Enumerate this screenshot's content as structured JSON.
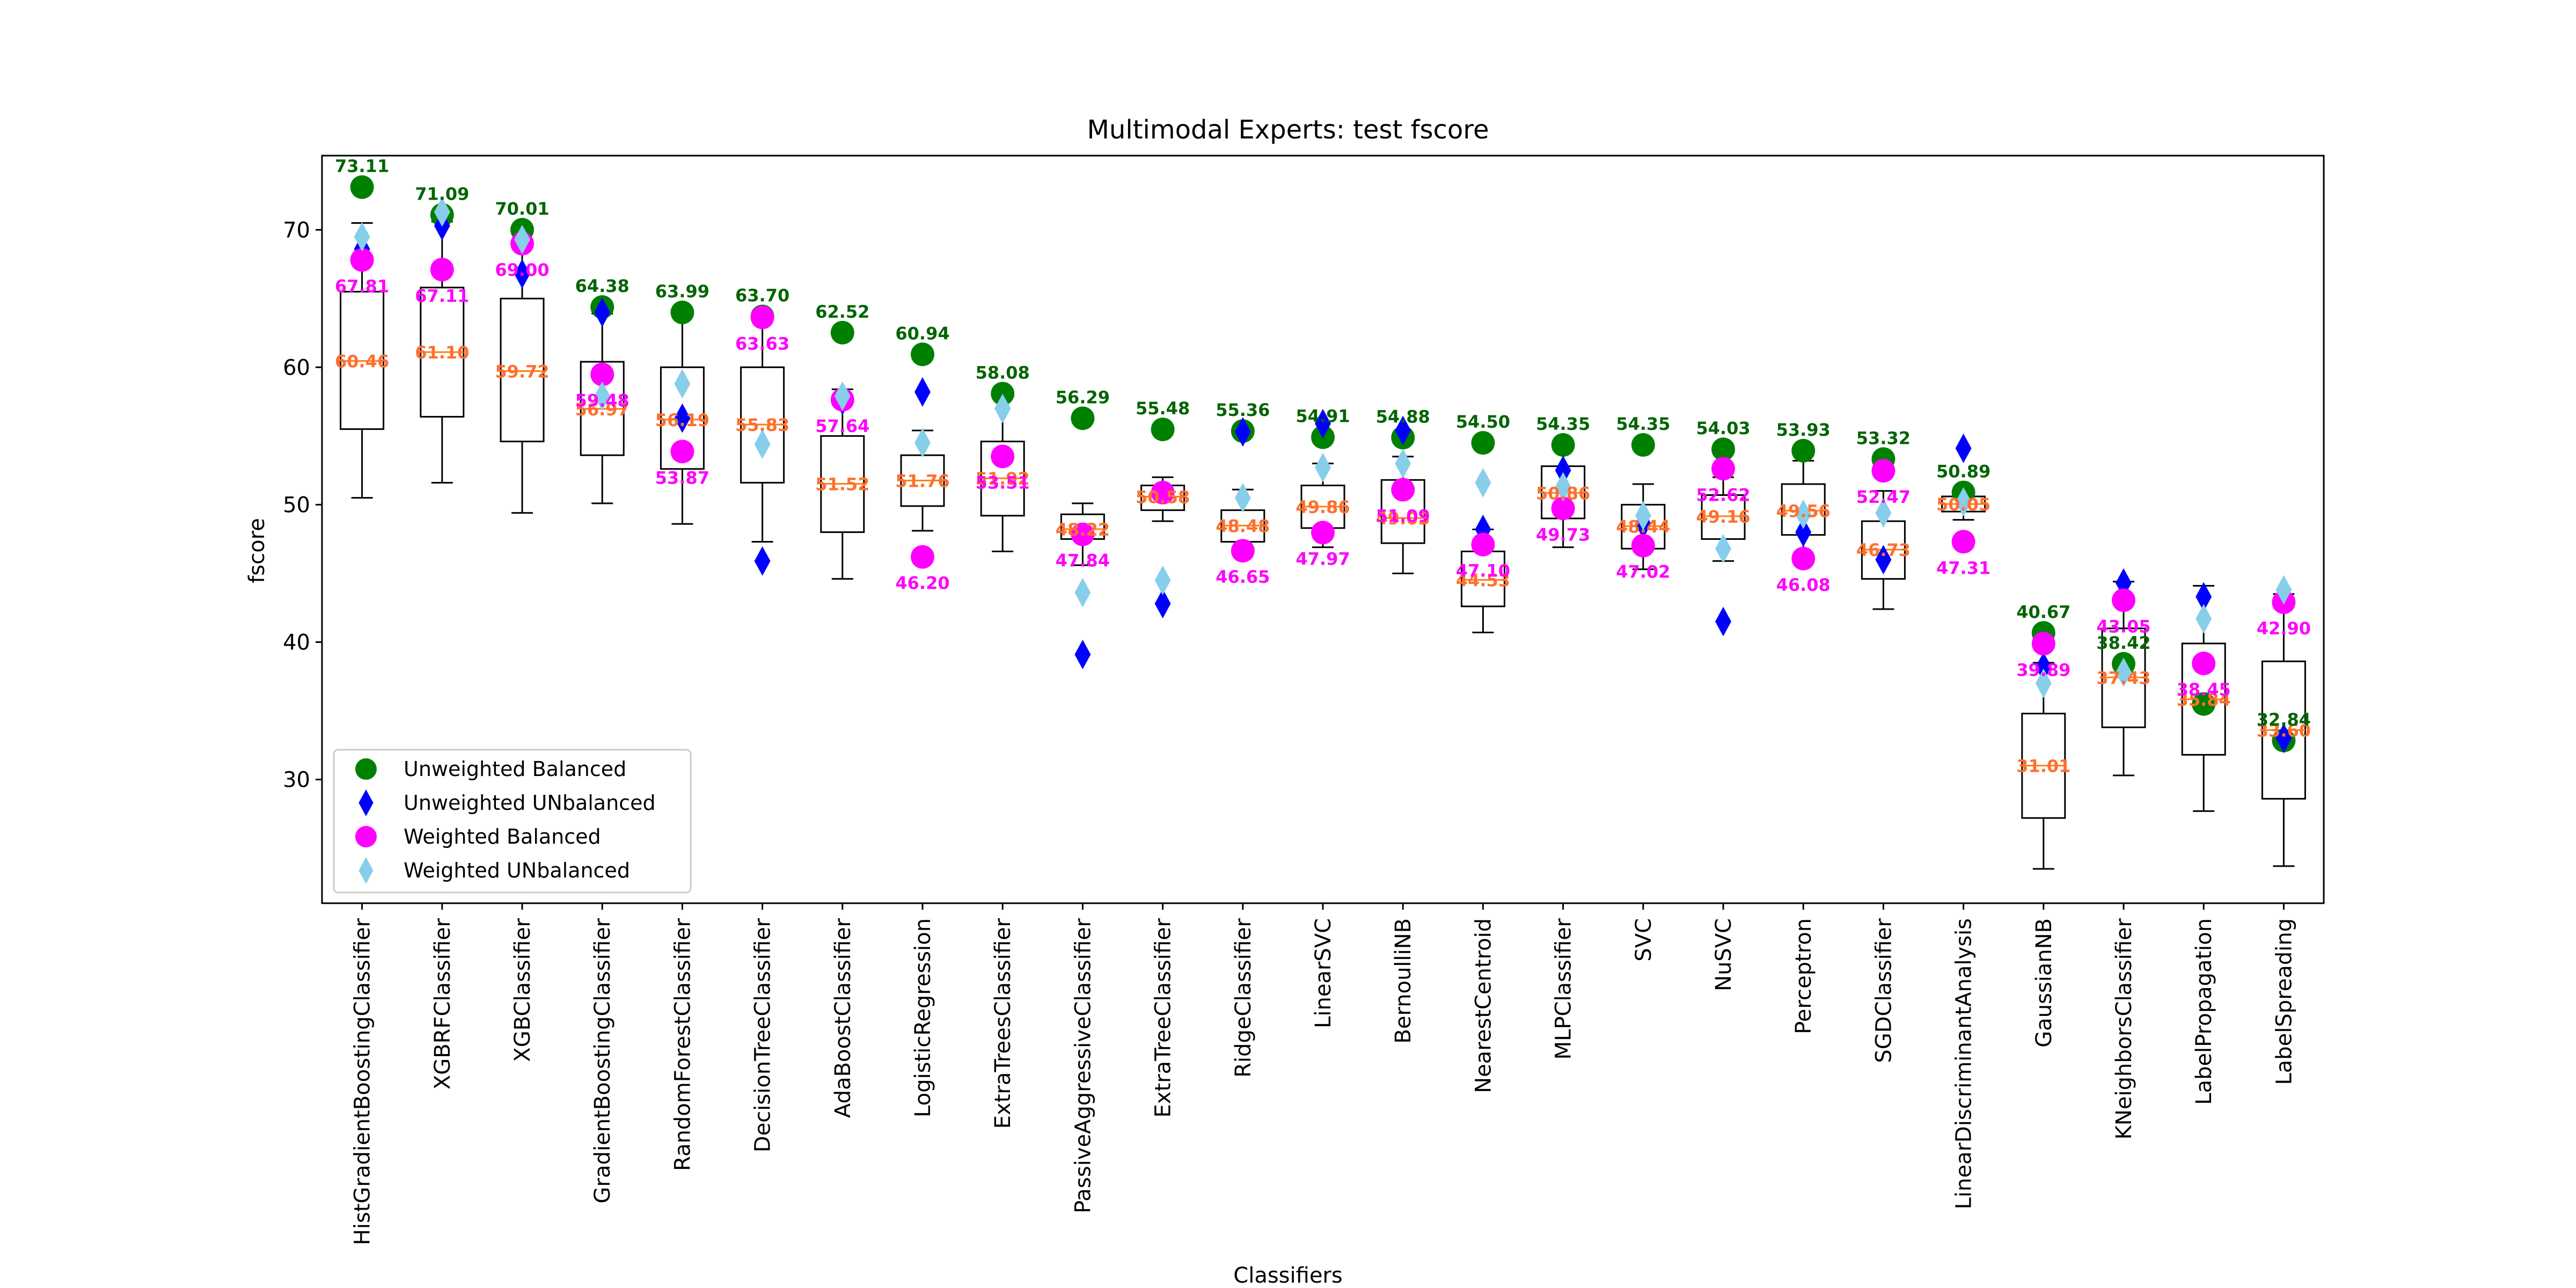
{
  "chart_data": {
    "type": "box",
    "title": "Multimodal Experts: test fscore",
    "xlabel": "Classifiers",
    "ylabel": "fscore",
    "ylim": [
      21,
      75.4
    ],
    "yticks": [
      30,
      40,
      50,
      60,
      70
    ],
    "grid": false,
    "legend_position": "lower-left",
    "categories": [
      "HistGradientBoostingClassifier",
      "XGBRFClassifier",
      "XGBClassifier",
      "GradientBoostingClassifier",
      "RandomForestClassifier",
      "DecisionTreeClassifier",
      "AdaBoostClassifier",
      "LogisticRegression",
      "ExtraTreesClassifier",
      "PassiveAggressiveClassifier",
      "ExtraTreeClassifier",
      "RidgeClassifier",
      "LinearSVC",
      "BernoulliNB",
      "NearestCentroid",
      "MLPClassifier",
      "SVC",
      "NuSVC",
      "Perceptron",
      "SGDClassifier",
      "LinearDiscriminantAnalysis",
      "GaussianNB",
      "KNeighborsClassifier",
      "LabelPropagation",
      "LabelSpreading"
    ],
    "boxes": [
      {
        "min": 50.5,
        "q1": 55.5,
        "median": 60.46,
        "q3": 65.5,
        "max": 70.5,
        "median_label": "60.46"
      },
      {
        "min": 51.6,
        "q1": 56.4,
        "median": 61.1,
        "q3": 65.8,
        "max": 70.6,
        "median_label": "61.10"
      },
      {
        "min": 49.4,
        "q1": 54.6,
        "median": 59.72,
        "q3": 65.0,
        "max": 70.0,
        "median_label": "59.72"
      },
      {
        "min": 50.1,
        "q1": 53.6,
        "median": 56.97,
        "q3": 60.4,
        "max": 63.9,
        "median_label": "56.97"
      },
      {
        "min": 48.6,
        "q1": 52.6,
        "median": 56.19,
        "q3": 60.0,
        "max": 63.9,
        "median_label": "56.19"
      },
      {
        "min": 47.3,
        "q1": 51.6,
        "median": 55.83,
        "q3": 60.0,
        "max": 63.7,
        "median_label": "55.83"
      },
      {
        "min": 44.6,
        "q1": 48.0,
        "median": 51.52,
        "q3": 55.0,
        "max": 58.4,
        "median_label": "51.52"
      },
      {
        "min": 48.1,
        "q1": 49.9,
        "median": 51.76,
        "q3": 53.6,
        "max": 55.4,
        "median_label": "51.76"
      },
      {
        "min": 46.6,
        "q1": 49.2,
        "median": 51.92,
        "q3": 54.6,
        "max": 58.0,
        "median_label": "51.92"
      },
      {
        "min": 45.6,
        "q1": 47.5,
        "median": 48.22,
        "q3": 49.3,
        "max": 50.1,
        "median_label": "48.22"
      },
      {
        "min": 48.8,
        "q1": 49.6,
        "median": 50.58,
        "q3": 51.4,
        "max": 52.0,
        "median_label": "50.58"
      },
      {
        "min": 46.6,
        "q1": 47.3,
        "median": 48.48,
        "q3": 49.6,
        "max": 51.1,
        "median_label": "48.48"
      },
      {
        "min": 46.9,
        "q1": 48.3,
        "median": 49.86,
        "q3": 51.4,
        "max": 53.0,
        "median_label": "49.86"
      },
      {
        "min": 45.0,
        "q1": 47.2,
        "median": 49.03,
        "q3": 51.8,
        "max": 53.5,
        "median_label": "49.03"
      },
      {
        "min": 40.7,
        "q1": 42.6,
        "median": 44.53,
        "q3": 46.6,
        "max": 48.2,
        "median_label": "44.53"
      },
      {
        "min": 46.9,
        "q1": 49.0,
        "median": 50.86,
        "q3": 52.8,
        "max": 54.5,
        "median_label": "50.86"
      },
      {
        "min": 45.3,
        "q1": 46.8,
        "median": 48.44,
        "q3": 50.0,
        "max": 51.5,
        "median_label": "48.44"
      },
      {
        "min": 45.9,
        "q1": 47.5,
        "median": 49.16,
        "q3": 50.7,
        "max": 52.0,
        "median_label": "49.16"
      },
      {
        "min": 46.2,
        "q1": 47.8,
        "median": 49.56,
        "q3": 51.5,
        "max": 53.2,
        "median_label": "49.56"
      },
      {
        "min": 42.4,
        "q1": 44.6,
        "median": 46.73,
        "q3": 48.8,
        "max": 51.0,
        "median_label": "46.73"
      },
      {
        "min": 48.9,
        "q1": 49.5,
        "median": 50.05,
        "q3": 50.6,
        "max": 51.1,
        "median_label": "50.05"
      },
      {
        "min": 23.5,
        "q1": 27.2,
        "median": 31.01,
        "q3": 34.8,
        "max": 38.5,
        "median_label": "31.01"
      },
      {
        "min": 30.3,
        "q1": 33.8,
        "median": 37.43,
        "q3": 41.0,
        "max": 44.4,
        "median_label": "37.43"
      },
      {
        "min": 27.7,
        "q1": 31.8,
        "median": 35.84,
        "q3": 39.9,
        "max": 44.1,
        "median_label": "35.84"
      },
      {
        "min": 23.7,
        "q1": 28.6,
        "median": 33.6,
        "q3": 38.6,
        "max": 43.5,
        "median_label": "33.60"
      }
    ],
    "series": [
      {
        "name": "Unweighted Balanced",
        "color": "#008000",
        "marker": "circle",
        "values": [
          73.11,
          71.09,
          70.01,
          64.38,
          63.99,
          63.7,
          62.52,
          60.94,
          58.08,
          56.29,
          55.48,
          55.36,
          54.91,
          54.88,
          54.5,
          54.35,
          54.35,
          54.03,
          53.93,
          53.32,
          50.89,
          40.67,
          38.42,
          35.5,
          32.84
        ],
        "labels": [
          "73.11",
          "71.09",
          "70.01",
          "64.38",
          "63.99",
          "63.70",
          "62.52",
          "60.94",
          "58.08",
          "56.29",
          "55.48",
          "55.36",
          "54.91",
          "54.88",
          "54.50",
          "54.35",
          "54.35",
          "54.03",
          "53.93",
          "53.32",
          "50.89",
          "40.67",
          "38.42",
          "",
          "32.84"
        ]
      },
      {
        "name": "Unweighted UNbalanced",
        "color": "#0000ff",
        "marker": "diamond",
        "values": [
          68.6,
          70.3,
          66.8,
          64.0,
          56.3,
          45.9,
          57.6,
          58.2,
          57.0,
          39.1,
          42.8,
          55.3,
          55.9,
          55.4,
          48.2,
          52.5,
          48.6,
          41.5,
          48.0,
          46.0,
          54.1,
          38.2,
          44.3,
          43.3,
          33.0
        ]
      },
      {
        "name": "Weighted Balanced",
        "color": "#ff00ff",
        "marker": "circle",
        "values": [
          67.81,
          67.11,
          69.0,
          59.48,
          53.87,
          63.63,
          57.64,
          46.2,
          53.51,
          47.84,
          50.88,
          46.65,
          47.97,
          51.09,
          47.1,
          49.73,
          47.02,
          52.62,
          46.08,
          52.47,
          47.31,
          39.89,
          43.05,
          38.45,
          42.9
        ],
        "labels": [
          "67.81",
          "67.11",
          "69.00",
          "59.48",
          "53.87",
          "63.63",
          "57.64",
          "46.20",
          "53.51",
          "47.84",
          "",
          "46.65",
          "47.97",
          "51.09",
          "47.10",
          "49.73",
          "47.02",
          "52.62",
          "46.08",
          "52.47",
          "47.31",
          "39.89",
          "43.05",
          "38.45",
          "42.90"
        ]
      },
      {
        "name": "Weighted UNbalanced",
        "color": "#87ceeb",
        "marker": "diamond",
        "values": [
          69.5,
          71.3,
          69.3,
          57.9,
          58.8,
          54.4,
          57.9,
          54.5,
          57.0,
          43.6,
          44.5,
          50.5,
          52.7,
          53.0,
          51.6,
          51.3,
          49.2,
          46.8,
          49.3,
          49.4,
          50.2,
          37.0,
          37.8,
          41.7,
          43.8
        ]
      }
    ]
  }
}
